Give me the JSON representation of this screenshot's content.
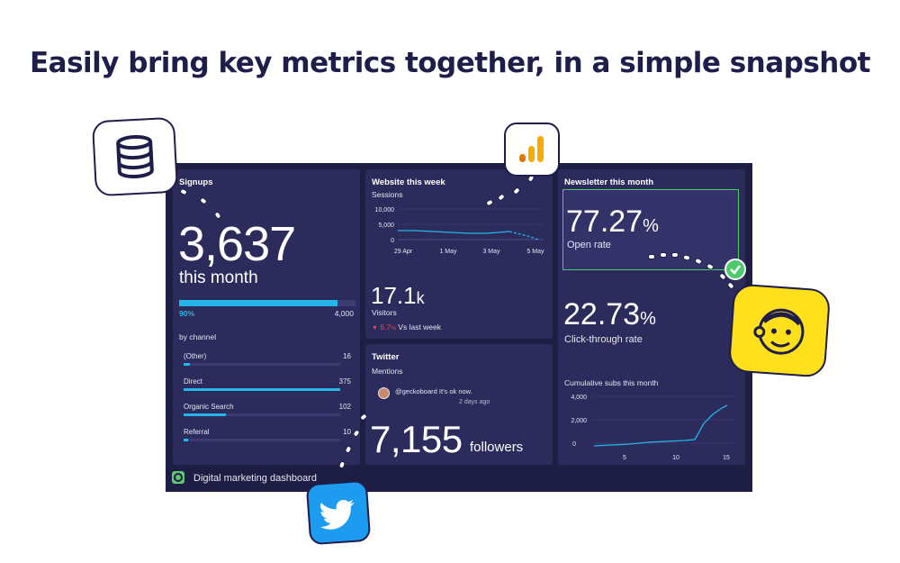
{
  "headline": "Easily bring key metrics together, in a simple snapshot",
  "signups": {
    "title": "Signups",
    "value": "3,637",
    "period": "this month",
    "progress_pct_label": "90%",
    "progress_fraction": 0.9,
    "goal": "4,000",
    "by_channel_label": "by channel",
    "channels": [
      {
        "name": "(Other)",
        "value": "16",
        "fraction": 0.04
      },
      {
        "name": "Direct",
        "value": "375",
        "fraction": 1.0
      },
      {
        "name": "Organic Search",
        "value": "102",
        "fraction": 0.27
      },
      {
        "name": "Referral",
        "value": "10",
        "fraction": 0.03
      }
    ]
  },
  "website": {
    "title": "Website this week",
    "sessions_label": "Sessions",
    "y_ticks": [
      "10,000",
      "5,000",
      "0"
    ],
    "x_ticks": [
      "29 Apr",
      "1 May",
      "3 May",
      "5 May"
    ],
    "visitors_value": "17.1",
    "visitors_unit": "k",
    "visitors_label": "Visitors",
    "change": "6.7",
    "change_unit": "%",
    "change_label": "Vs last week",
    "down_color": "#e8485a"
  },
  "twitter": {
    "title": "Twitter",
    "mentions_label": "Mentions",
    "handle": "@geckoboard",
    "tweet": "It's ok now.",
    "ago": "2 days ago",
    "followers_value": "7,155",
    "followers_label": "followers"
  },
  "newsletter": {
    "title": "Newsletter this month",
    "open_rate_value": "77.27",
    "open_rate_unit": "%",
    "open_rate_label": "Open rate",
    "ctr_value": "22.73",
    "ctr_unit": "%",
    "ctr_label": "Click-through rate",
    "cumulative_label": "Cumulative subs this month",
    "y_ticks": [
      "4,000",
      "2,000",
      "0"
    ],
    "x_ticks": [
      "5",
      "10",
      "15"
    ],
    "highlight_color": "#4ec96c"
  },
  "footer": {
    "dashboard_name": "Digital marketing dashboard"
  },
  "icons": {
    "database": "database-icon",
    "analytics": "analytics-bars-icon",
    "mailchimp": "mailchimp-icon",
    "twitter": "twitter-bird-icon",
    "check": "check-icon",
    "geckoboard": "geckoboard-logo-icon"
  },
  "colors": {
    "accent": "#27b4e8",
    "panel": "#2b2b5c",
    "background": "#1e1e45",
    "mailchimp_yellow": "#ffe01b",
    "twitter_blue": "#1d9bf0"
  }
}
